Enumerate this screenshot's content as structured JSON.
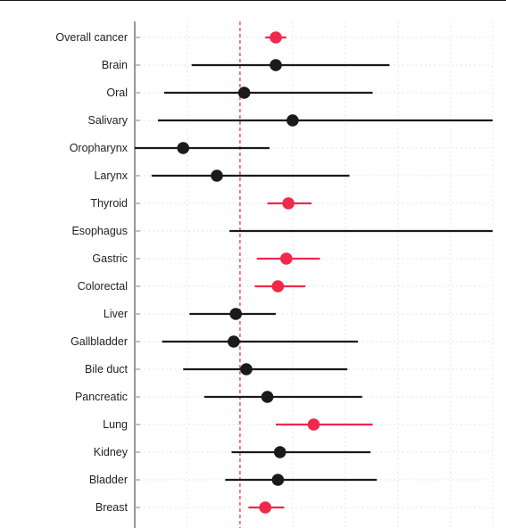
{
  "chart_data": {
    "type": "forest",
    "title": "",
    "xlabel": "",
    "ylabel": "",
    "xlim": [
      0.5,
      2.2
    ],
    "reference_value": 1.0,
    "grid": true,
    "colors": {
      "significant": "#f0284b",
      "nonsignificant": "#1a1a1a",
      "reference": "#f0284b",
      "axis": "#999999",
      "grid": "#e6e6e6"
    },
    "categories": [
      "Overall cancer",
      "Brain",
      "Oral",
      "Salivary",
      "Oropharynx",
      "Larynx",
      "Thyroid",
      "Esophagus",
      "Gastric",
      "Colorectal",
      "Liver",
      "Gallbladder",
      "Bile duct",
      "Pancreatic",
      "Lung",
      "Kidney",
      "Bladder",
      "Breast"
    ],
    "series": [
      {
        "points": [
          {
            "category": "Overall cancer",
            "estimate": 1.17,
            "lower": 1.12,
            "upper": 1.22,
            "significant": true
          },
          {
            "category": "Brain",
            "estimate": 1.17,
            "lower": 0.77,
            "upper": 1.71,
            "significant": false
          },
          {
            "category": "Oral",
            "estimate": 1.02,
            "lower": 0.64,
            "upper": 1.63,
            "significant": false
          },
          {
            "category": "Salivary",
            "estimate": 1.25,
            "lower": 0.61,
            "upper": 2.2,
            "significant": false
          },
          {
            "category": "Oropharynx",
            "estimate": 0.73,
            "lower": 0.5,
            "upper": 1.14,
            "significant": false
          },
          {
            "category": "Larynx",
            "estimate": 0.89,
            "lower": 0.58,
            "upper": 1.52,
            "significant": false
          },
          {
            "category": "Thyroid",
            "estimate": 1.23,
            "lower": 1.13,
            "upper": 1.34,
            "significant": true
          },
          {
            "category": "Esophagus",
            "estimate": null,
            "lower": 0.95,
            "upper": 2.2,
            "significant": false
          },
          {
            "category": "Gastric",
            "estimate": 1.22,
            "lower": 1.08,
            "upper": 1.38,
            "significant": true
          },
          {
            "category": "Colorectal",
            "estimate": 1.18,
            "lower": 1.07,
            "upper": 1.31,
            "significant": true
          },
          {
            "category": "Liver",
            "estimate": 0.98,
            "lower": 0.76,
            "upper": 1.17,
            "significant": false
          },
          {
            "category": "Gallbladder",
            "estimate": 0.97,
            "lower": 0.63,
            "upper": 1.56,
            "significant": false
          },
          {
            "category": "Bile duct",
            "estimate": 1.03,
            "lower": 0.73,
            "upper": 1.51,
            "significant": false
          },
          {
            "category": "Pancreatic",
            "estimate": 1.13,
            "lower": 0.83,
            "upper": 1.58,
            "significant": false
          },
          {
            "category": "Lung",
            "estimate": 1.35,
            "lower": 1.17,
            "upper": 1.63,
            "significant": true
          },
          {
            "category": "Kidney",
            "estimate": 1.19,
            "lower": 0.96,
            "upper": 1.62,
            "significant": false
          },
          {
            "category": "Bladder",
            "estimate": 1.18,
            "lower": 0.93,
            "upper": 1.65,
            "significant": false
          },
          {
            "category": "Breast",
            "estimate": 1.12,
            "lower": 1.04,
            "upper": 1.21,
            "significant": true
          }
        ]
      }
    ]
  }
}
